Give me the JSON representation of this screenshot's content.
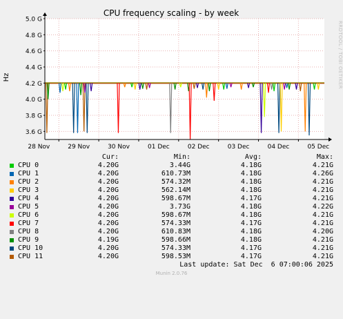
{
  "chart_data": {
    "type": "line",
    "title": "CPU frequency scaling - by week",
    "ylabel": "Hz",
    "ylim": [
      3.5,
      5.0
    ],
    "yticks": [
      {
        "v": 5.0,
        "label": "5.0 G"
      },
      {
        "v": 4.8,
        "label": "4.8 G"
      },
      {
        "v": 4.6,
        "label": "4.6 G"
      },
      {
        "v": 4.4,
        "label": "4.4 G"
      },
      {
        "v": 4.2,
        "label": "4.2 G"
      },
      {
        "v": 4.0,
        "label": "4.0 G"
      },
      {
        "v": 3.8,
        "label": "3.8 G"
      },
      {
        "v": 3.6,
        "label": "3.6 G"
      }
    ],
    "xlim": [
      0,
      7.0
    ],
    "xticks": [
      {
        "v": 0.35,
        "label": "28 Nov"
      },
      {
        "v": 1.35,
        "label": "29 Nov"
      },
      {
        "v": 2.35,
        "label": "30 Nov"
      },
      {
        "v": 3.35,
        "label": "01 Dec"
      },
      {
        "v": 4.35,
        "label": "02 Dec"
      },
      {
        "v": 5.35,
        "label": "03 Dec"
      },
      {
        "v": 6.35,
        "label": "04 Dec"
      },
      {
        "v": 7.35,
        "label": "05 Dec"
      }
    ],
    "grid": true,
    "series": [
      {
        "name": "CPU 0",
        "color": "#00cc00",
        "cur": "4.20G",
        "min": "3.44G",
        "avg": "4.18G",
        "max": "4.21G"
      },
      {
        "name": "CPU 1",
        "color": "#0066b3",
        "cur": "4.20G",
        "min": "610.73M",
        "avg": "4.18G",
        "max": "4.26G"
      },
      {
        "name": "CPU 2",
        "color": "#ff8000",
        "cur": "4.20G",
        "min": "574.32M",
        "avg": "4.18G",
        "max": "4.21G"
      },
      {
        "name": "CPU 3",
        "color": "#ffcc00",
        "cur": "4.20G",
        "min": "562.14M",
        "avg": "4.18G",
        "max": "4.21G"
      },
      {
        "name": "CPU 4",
        "color": "#330099",
        "cur": "4.20G",
        "min": "598.67M",
        "avg": "4.17G",
        "max": "4.21G"
      },
      {
        "name": "CPU 5",
        "color": "#990099",
        "cur": "4.20G",
        "min": "3.73G",
        "avg": "4.18G",
        "max": "4.22G"
      },
      {
        "name": "CPU 6",
        "color": "#ccff00",
        "cur": "4.20G",
        "min": "598.67M",
        "avg": "4.18G",
        "max": "4.21G"
      },
      {
        "name": "CPU 7",
        "color": "#ff0000",
        "cur": "4.20G",
        "min": "574.33M",
        "avg": "4.17G",
        "max": "4.21G"
      },
      {
        "name": "CPU 8",
        "color": "#808080",
        "cur": "4.20G",
        "min": "610.83M",
        "avg": "4.18G",
        "max": "4.20G"
      },
      {
        "name": "CPU 9",
        "color": "#008f00",
        "cur": "4.19G",
        "min": "598.66M",
        "avg": "4.18G",
        "max": "4.21G"
      },
      {
        "name": "CPU 10",
        "color": "#00487d",
        "cur": "4.20G",
        "min": "574.33M",
        "avg": "4.17G",
        "max": "4.21G"
      },
      {
        "name": "CPU 11",
        "color": "#b35a00",
        "cur": "4.20G",
        "min": "598.53M",
        "avg": "4.17G",
        "max": "4.21G"
      }
    ],
    "baseline_value": 4.2,
    "dips": [
      {
        "x": 0.05,
        "y": 3.58,
        "series": 11
      },
      {
        "x": 0.08,
        "y": 4.0,
        "series": 9
      },
      {
        "x": 0.38,
        "y": 4.08,
        "series": 1
      },
      {
        "x": 0.45,
        "y": 4.1,
        "series": 6
      },
      {
        "x": 0.52,
        "y": 4.12,
        "series": 0
      },
      {
        "x": 0.62,
        "y": 4.1,
        "series": 2
      },
      {
        "x": 0.72,
        "y": 3.58,
        "series": 10
      },
      {
        "x": 0.82,
        "y": 3.58,
        "series": 1
      },
      {
        "x": 0.9,
        "y": 4.05,
        "series": 9
      },
      {
        "x": 0.98,
        "y": 3.6,
        "series": 11
      },
      {
        "x": 1.0,
        "y": 4.08,
        "series": 5
      },
      {
        "x": 1.06,
        "y": 3.58,
        "series": 10
      },
      {
        "x": 1.16,
        "y": 4.1,
        "series": 4
      },
      {
        "x": 1.84,
        "y": 3.58,
        "series": 7
      },
      {
        "x": 2.0,
        "y": 4.15,
        "series": 2
      },
      {
        "x": 2.18,
        "y": 4.15,
        "series": 0
      },
      {
        "x": 2.26,
        "y": 4.12,
        "series": 3
      },
      {
        "x": 2.38,
        "y": 4.12,
        "series": 4
      },
      {
        "x": 2.45,
        "y": 4.13,
        "series": 9
      },
      {
        "x": 2.55,
        "y": 4.12,
        "series": 11
      },
      {
        "x": 2.62,
        "y": 4.14,
        "series": 5
      },
      {
        "x": 3.15,
        "y": 3.58,
        "series": 8
      },
      {
        "x": 3.26,
        "y": 4.12,
        "series": 9
      },
      {
        "x": 3.4,
        "y": 4.15,
        "series": 6
      },
      {
        "x": 3.6,
        "y": 4.1,
        "series": 9
      },
      {
        "x": 3.64,
        "y": 3.5,
        "series": 7
      },
      {
        "x": 3.74,
        "y": 4.13,
        "series": 11
      },
      {
        "x": 3.82,
        "y": 4.14,
        "series": 4
      },
      {
        "x": 3.96,
        "y": 4.12,
        "series": 10
      },
      {
        "x": 4.05,
        "y": 4.02,
        "series": 2
      },
      {
        "x": 4.12,
        "y": 4.1,
        "series": 9
      },
      {
        "x": 4.24,
        "y": 3.98,
        "series": 7
      },
      {
        "x": 4.35,
        "y": 4.12,
        "series": 3
      },
      {
        "x": 4.48,
        "y": 4.12,
        "series": 0
      },
      {
        "x": 4.56,
        "y": 4.13,
        "series": 1
      },
      {
        "x": 4.66,
        "y": 4.15,
        "series": 5
      },
      {
        "x": 4.92,
        "y": 4.12,
        "series": 2
      },
      {
        "x": 5.1,
        "y": 4.14,
        "series": 4
      },
      {
        "x": 5.22,
        "y": 4.15,
        "series": 9
      },
      {
        "x": 5.42,
        "y": 3.58,
        "series": 4
      },
      {
        "x": 5.5,
        "y": 3.78,
        "series": 6
      },
      {
        "x": 5.6,
        "y": 4.08,
        "series": 7
      },
      {
        "x": 5.68,
        "y": 4.12,
        "series": 8
      },
      {
        "x": 5.74,
        "y": 4.1,
        "series": 0
      },
      {
        "x": 5.86,
        "y": 3.58,
        "series": 10
      },
      {
        "x": 5.92,
        "y": 3.6,
        "series": 3
      },
      {
        "x": 6.0,
        "y": 4.12,
        "series": 5
      },
      {
        "x": 6.06,
        "y": 4.14,
        "series": 1
      },
      {
        "x": 6.12,
        "y": 4.12,
        "series": 9
      },
      {
        "x": 6.3,
        "y": 4.12,
        "series": 4
      },
      {
        "x": 6.4,
        "y": 4.1,
        "series": 11
      },
      {
        "x": 6.52,
        "y": 3.6,
        "series": 2
      },
      {
        "x": 6.62,
        "y": 3.55,
        "series": 10
      },
      {
        "x": 6.75,
        "y": 4.12,
        "series": 0
      },
      {
        "x": 6.85,
        "y": 4.12,
        "series": 3
      }
    ]
  },
  "legend_headers": {
    "cur": "Cur:",
    "min": "Min:",
    "avg": "Avg:",
    "max": "Max:"
  },
  "footer": {
    "last_update": "Last update: Sat Dec  6 07:00:06 2025"
  },
  "watermark": "RRDTOOL / TOBI OETIKER",
  "version": "Munin 2.0.76"
}
